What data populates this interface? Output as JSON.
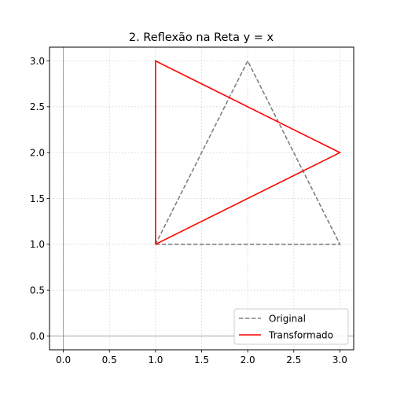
{
  "chart_data": {
    "type": "line",
    "title": "2. Reflexão na Reta y = x",
    "xlabel": "",
    "ylabel": "",
    "xlim": [
      -0.15,
      3.15
    ],
    "ylim": [
      -0.15,
      3.15
    ],
    "xticks": [
      0.0,
      0.5,
      1.0,
      1.5,
      2.0,
      2.5,
      3.0
    ],
    "yticks": [
      0.0,
      0.5,
      1.0,
      1.5,
      2.0,
      2.5,
      3.0
    ],
    "xtick_labels": [
      "0.0",
      "0.5",
      "1.0",
      "1.5",
      "2.0",
      "2.5",
      "3.0"
    ],
    "ytick_labels": [
      "0.0",
      "0.5",
      "1.0",
      "1.5",
      "2.0",
      "2.5",
      "3.0"
    ],
    "grid": true,
    "legend_position": "bottom-right",
    "series": [
      {
        "name": "Original",
        "color": "#808080",
        "style": "dashed",
        "x": [
          1,
          3,
          2,
          1
        ],
        "y": [
          1,
          1,
          3,
          1
        ]
      },
      {
        "name": "Transformado",
        "color": "#ff0000",
        "style": "solid",
        "x": [
          1,
          1,
          3,
          1
        ],
        "y": [
          1,
          3,
          2,
          1
        ]
      }
    ]
  }
}
